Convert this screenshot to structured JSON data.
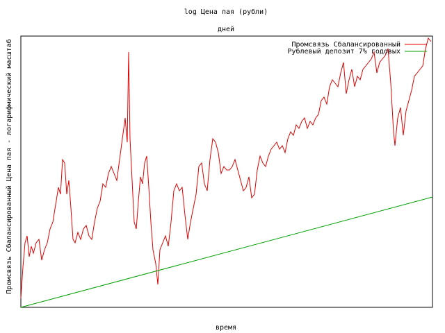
{
  "chart_data": {
    "type": "line",
    "title": "log Цена пая (рубли)",
    "x2_label": "дней",
    "xlabel": "время",
    "ylabel": "Промсвязь Сбалансированный Цена пая - логарифмический масштаб",
    "xlim": [
      0,
      592
    ],
    "ylim": [
      0,
      391
    ],
    "legend": "upper right",
    "series": [
      {
        "name": "Промсвязь Сбалансированный",
        "color": "#e00000",
        "x": [
          0,
          3,
          6,
          9,
          12,
          15,
          18,
          22,
          26,
          30,
          34,
          38,
          42,
          46,
          50,
          54,
          57,
          60,
          63,
          66,
          69,
          72,
          75,
          78,
          82,
          86,
          90,
          94,
          98,
          102,
          106,
          110,
          114,
          118,
          122,
          126,
          130,
          134,
          138,
          142,
          146,
          150,
          153,
          155,
          157,
          160,
          163,
          166,
          169,
          172,
          175,
          178,
          181,
          184,
          187,
          190,
          194,
          197,
          200,
          204,
          208,
          212,
          216,
          220,
          224,
          228,
          232,
          236,
          240,
          244,
          248,
          252,
          256,
          260,
          264,
          268,
          272,
          276,
          280,
          284,
          288,
          292,
          296,
          300,
          304,
          308,
          312,
          316,
          320,
          324,
          328,
          332,
          336,
          340,
          344,
          348,
          352,
          356,
          360,
          364,
          368,
          372,
          376,
          380,
          384,
          388,
          392,
          396,
          400,
          404,
          408,
          412,
          416,
          420,
          424,
          428,
          432,
          436,
          440,
          444,
          448,
          452,
          456,
          460,
          464,
          468,
          472,
          476,
          480,
          484,
          488,
          492,
          496,
          500,
          504,
          508,
          512,
          516,
          520,
          524,
          528,
          532,
          536,
          538,
          542,
          546,
          550,
          554,
          558,
          562,
          566,
          570,
          574,
          578,
          582,
          586,
          590
        ],
        "values": [
          13,
          58,
          93,
          103,
          73,
          88,
          78,
          93,
          98,
          68,
          83,
          93,
          113,
          123,
          148,
          173,
          163,
          213,
          208,
          163,
          183,
          143,
          98,
          93,
          108,
          98,
          113,
          118,
          103,
          98,
          123,
          143,
          153,
          178,
          173,
          193,
          203,
          193,
          183,
          213,
          243,
          273,
          238,
          368,
          243,
          183,
          123,
          113,
          153,
          188,
          178,
          208,
          218,
          173,
          123,
          83,
          63,
          33,
          83,
          93,
          103,
          88,
          123,
          168,
          178,
          168,
          173,
          133,
          98,
          123,
          143,
          163,
          203,
          208,
          178,
          168,
          213,
          243,
          238,
          223,
          193,
          203,
          198,
          198,
          203,
          213,
          198,
          183,
          168,
          173,
          188,
          158,
          163,
          198,
          218,
          208,
          203,
          218,
          228,
          233,
          238,
          228,
          233,
          223,
          243,
          253,
          248,
          263,
          258,
          268,
          273,
          258,
          268,
          263,
          273,
          278,
          298,
          303,
          293,
          318,
          328,
          323,
          318,
          338,
          353,
          308,
          328,
          343,
          318,
          333,
          328,
          343,
          348,
          353,
          358,
          368,
          338,
          353,
          358,
          363,
          373,
          323,
          253,
          233,
          273,
          288,
          248,
          283,
          298,
          313,
          333,
          338,
          343,
          348,
          373,
          388,
          383
        ]
      },
      {
        "name": "Рублевый депозит 7% годовых",
        "color": "#00a000",
        "x": [
          0,
          592
        ],
        "values": [
          0,
          159
        ]
      }
    ]
  }
}
